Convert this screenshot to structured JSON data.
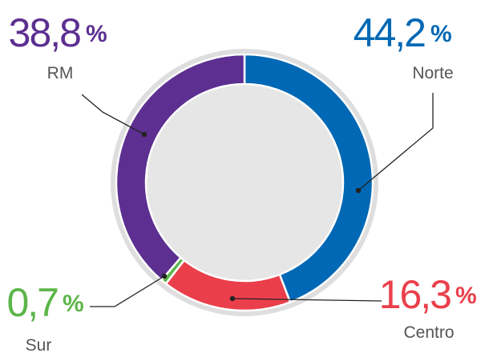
{
  "chart_data": {
    "type": "pie",
    "categories": [
      "Norte",
      "Centro",
      "Sur",
      "RM"
    ],
    "values": [
      44.2,
      16.3,
      0.7,
      38.8
    ],
    "value_labels": [
      "44,2",
      "16,3",
      "0,7",
      "38,8"
    ],
    "unit_label": "%",
    "colors": [
      "#0068b4",
      "#ea3f4b",
      "#5cb54a",
      "#5c2f91"
    ],
    "donut": true
  }
}
